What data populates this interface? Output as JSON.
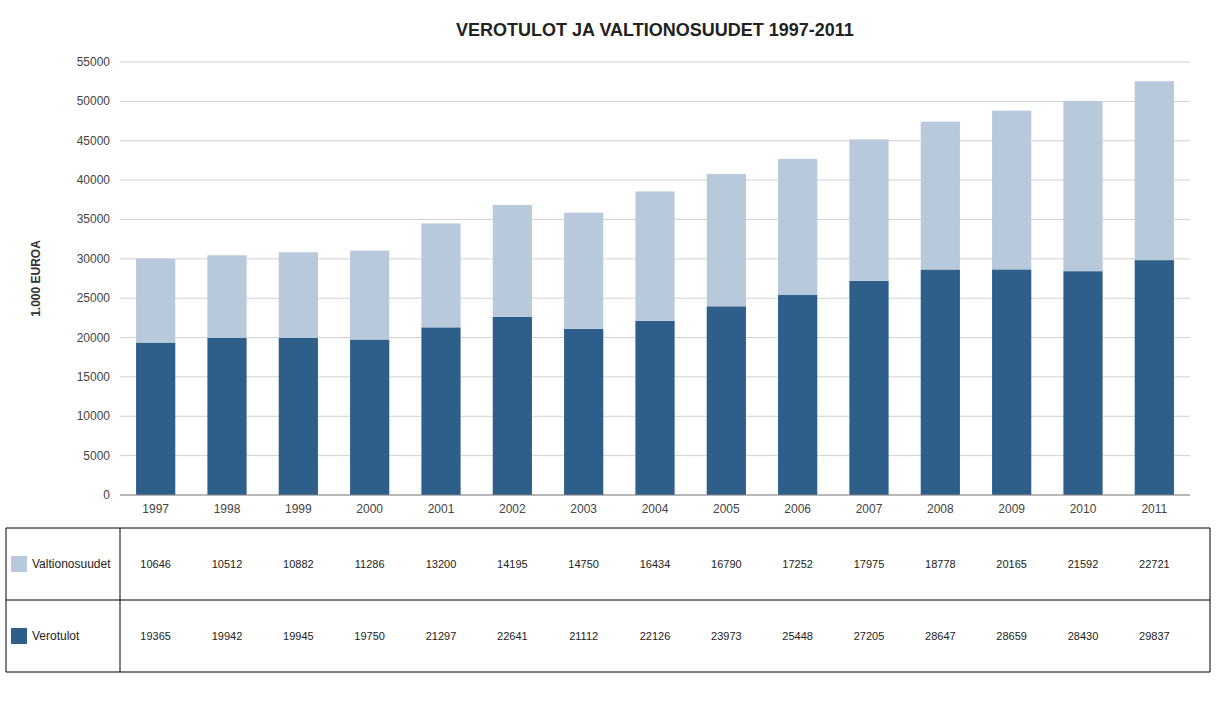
{
  "chart_data": {
    "type": "bar",
    "stacked": true,
    "title": "VEROTULOT JA VALTIONOSUUDET 1997-2011",
    "ylabel": "1.000 EUROA",
    "categories": [
      "1997",
      "1998",
      "1999",
      "2000",
      "2001",
      "2002",
      "2003",
      "2004",
      "2005",
      "2006",
      "2007",
      "2008",
      "2009",
      "2010",
      "2011"
    ],
    "series": [
      {
        "name": "Verotulot",
        "color": "#2E5F8A",
        "values": [
          19365,
          19942,
          19945,
          19750,
          21297,
          22641,
          21112,
          22126,
          23973,
          25448,
          27205,
          28647,
          28659,
          28430,
          29837
        ]
      },
      {
        "name": "Valtionosuudet",
        "color": "#B8C9DC",
        "values": [
          10646,
          10512,
          10882,
          11286,
          13200,
          14195,
          14750,
          16434,
          16790,
          17252,
          17975,
          18778,
          20165,
          21592,
          22721
        ]
      }
    ],
    "ylim": [
      0,
      55000
    ],
    "yticks": [
      0,
      5000,
      10000,
      15000,
      20000,
      25000,
      30000,
      35000,
      40000,
      45000,
      50000,
      55000
    ],
    "grid": true,
    "legend": "bottom",
    "data_labels": true
  }
}
